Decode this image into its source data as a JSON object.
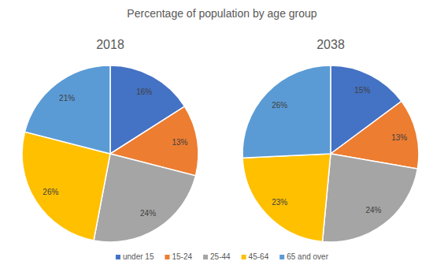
{
  "chart_data": {
    "type": "pie",
    "title": "Percentage of population by age group",
    "categories": [
      "under 15",
      "15-24",
      "25-44",
      "45-64",
      "65 and over"
    ],
    "colors": [
      "#4472c4",
      "#ed7d31",
      "#a5a5a5",
      "#ffc000",
      "#5b9bd5"
    ],
    "series": [
      {
        "name": "2018",
        "values": [
          16,
          13,
          24,
          26,
          21
        ],
        "value_labels": [
          "16%",
          "13%",
          "24%",
          "26%",
          "21%"
        ]
      },
      {
        "name": "2038",
        "values": [
          15,
          13,
          24,
          23,
          26
        ],
        "value_labels": [
          "15%",
          "13%",
          "24%",
          "23%",
          "26%"
        ]
      }
    ],
    "data_labels": true,
    "legend": "bottom"
  }
}
